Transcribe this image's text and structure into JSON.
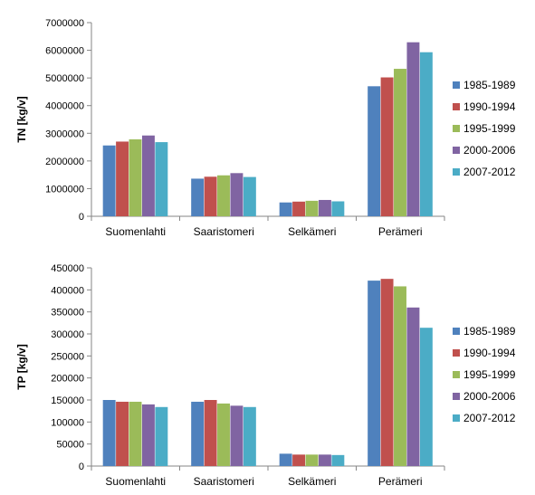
{
  "chart_data": [
    {
      "type": "bar",
      "title": "",
      "xlabel": "",
      "ylabel": "TN [kg/v]",
      "ylim": [
        0,
        7000000
      ],
      "yticks": [
        "0",
        "1000000",
        "2000000",
        "3000000",
        "4000000",
        "5000000",
        "6000000",
        "7000000"
      ],
      "grid": false,
      "legend_position": "right",
      "categories": [
        "Suomenlahti",
        "Saaristomeri",
        "Selkämeri",
        "Perämeri"
      ],
      "series": [
        {
          "name": "1985-1989",
          "color": "#4f81bd",
          "values": [
            2560000,
            1360000,
            500000,
            4700000
          ]
        },
        {
          "name": "1990-1994",
          "color": "#c0504d",
          "values": [
            2700000,
            1430000,
            530000,
            5020000
          ]
        },
        {
          "name": "1995-1999",
          "color": "#9bbb59",
          "values": [
            2780000,
            1480000,
            560000,
            5330000
          ]
        },
        {
          "name": "2000-2006",
          "color": "#8064a2",
          "values": [
            2920000,
            1560000,
            590000,
            6290000
          ]
        },
        {
          "name": "2007-2012",
          "color": "#4bacc6",
          "values": [
            2680000,
            1420000,
            540000,
            5930000
          ]
        }
      ]
    },
    {
      "type": "bar",
      "title": "",
      "xlabel": "",
      "ylabel": "TP [kg/v]",
      "ylim": [
        0,
        450000
      ],
      "yticks": [
        "0",
        "50000",
        "100000",
        "150000",
        "200000",
        "250000",
        "300000",
        "350000",
        "400000",
        "450000"
      ],
      "grid": false,
      "legend_position": "right",
      "categories": [
        "Suomenlahti",
        "Saaristomeri",
        "Selkämeri",
        "Perämeri"
      ],
      "series": [
        {
          "name": "1985-1989",
          "color": "#4f81bd",
          "values": [
            150000,
            146000,
            28000,
            421000
          ]
        },
        {
          "name": "1990-1994",
          "color": "#c0504d",
          "values": [
            146000,
            150000,
            26000,
            425000
          ]
        },
        {
          "name": "1995-1999",
          "color": "#9bbb59",
          "values": [
            146000,
            142000,
            26000,
            408000
          ]
        },
        {
          "name": "2000-2006",
          "color": "#8064a2",
          "values": [
            140000,
            137000,
            26000,
            360000
          ]
        },
        {
          "name": "2007-2012",
          "color": "#4bacc6",
          "values": [
            134000,
            134000,
            25000,
            314000
          ]
        }
      ]
    }
  ]
}
